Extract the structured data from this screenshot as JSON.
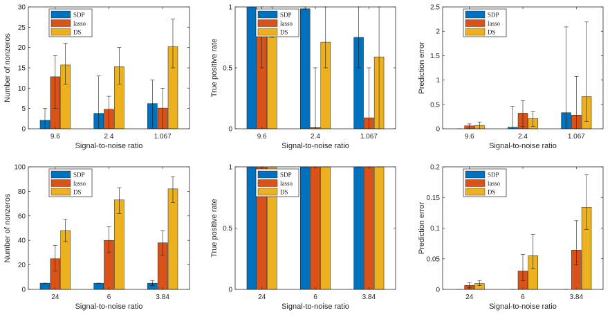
{
  "colors": {
    "SDP": "#0072BD",
    "lasso": "#D95319",
    "DS": "#EDB120"
  },
  "chart_data": [
    {
      "type": "bar",
      "categories": [
        "9.6",
        "2.4",
        "1.067"
      ],
      "xlabel": "Signal-to-noise ratio",
      "ylabel": "Number of nonzeros",
      "ylim": [
        0,
        30
      ],
      "yticks": [
        "0",
        "5",
        "10",
        "15",
        "20",
        "25",
        "30"
      ],
      "legend": "top-left",
      "series": [
        {
          "name": "SDP",
          "values": [
            2.1,
            3.8,
            6.2
          ],
          "err_low": [
            0,
            0,
            0
          ],
          "err_high": [
            5,
            13,
            12
          ]
        },
        {
          "name": "lasso",
          "values": [
            12.8,
            4.8,
            5.1
          ],
          "err_low": [
            5,
            0,
            0
          ],
          "err_high": [
            18,
            8,
            10
          ]
        },
        {
          "name": "DS",
          "values": [
            15.7,
            15.3,
            20.2
          ],
          "err_low": [
            11,
            11,
            15
          ],
          "err_high": [
            21,
            20,
            27
          ]
        }
      ]
    },
    {
      "type": "bar",
      "categories": [
        "9.6",
        "2.4",
        "1.067"
      ],
      "xlabel": "Signal-to-noise ratio",
      "ylabel": "True positive rate",
      "ylim": [
        0,
        1
      ],
      "yticks": [
        "0",
        "0.5",
        "1"
      ],
      "legend": "top-left",
      "series": [
        {
          "name": "SDP",
          "values": [
            1.0,
            0.985,
            0.75
          ],
          "err_low": [
            1.0,
            0.98,
            0.5
          ],
          "err_high": [
            1.0,
            1.0,
            1.0
          ]
        },
        {
          "name": "lasso",
          "values": [
            0.95,
            0.01,
            0.09
          ],
          "err_low": [
            0.5,
            0.0,
            0.0
          ],
          "err_high": [
            1.0,
            0.5,
            0.5
          ]
        },
        {
          "name": "DS",
          "values": [
            0.91,
            0.71,
            0.59
          ],
          "err_low": [
            0.75,
            0.5,
            0.0
          ],
          "err_high": [
            1.0,
            1.0,
            1.0
          ]
        }
      ]
    },
    {
      "type": "bar",
      "categories": [
        "9.6",
        "2.4",
        "1.067"
      ],
      "xlabel": "Signal-to-noise ratio",
      "ylabel": "Prediction error",
      "ylim": [
        0,
        2.5
      ],
      "yticks": [
        "0",
        "0.5",
        "1",
        "1.5",
        "2",
        "2.5"
      ],
      "legend": "top-left",
      "series": [
        {
          "name": "SDP",
          "values": [
            0.0,
            0.03,
            0.33
          ],
          "err_low": [
            0,
            0,
            0
          ],
          "err_high": [
            0,
            0.46,
            2.09
          ]
        },
        {
          "name": "lasso",
          "values": [
            0.06,
            0.32,
            0.28
          ],
          "err_low": [
            0,
            0.05,
            0
          ],
          "err_high": [
            0.1,
            0.58,
            1.07
          ]
        },
        {
          "name": "DS",
          "values": [
            0.07,
            0.21,
            0.66
          ],
          "err_low": [
            0,
            0.05,
            0.15
          ],
          "err_high": [
            0.14,
            0.35,
            2.19
          ]
        }
      ]
    },
    {
      "type": "bar",
      "categories": [
        "24",
        "6",
        "3.84"
      ],
      "xlabel": "Signal-to-noise ratio",
      "ylabel": "Number of nonzeros",
      "ylim": [
        0,
        100
      ],
      "yticks": [
        "0",
        "20",
        "40",
        "60",
        "80",
        "100"
      ],
      "legend": "top-left",
      "series": [
        {
          "name": "SDP",
          "values": [
            5,
            5,
            5
          ],
          "err_low": [
            5,
            5,
            3
          ],
          "err_high": [
            5,
            5,
            7
          ]
        },
        {
          "name": "lasso",
          "values": [
            25,
            40,
            38
          ],
          "err_low": [
            15,
            30,
            28
          ],
          "err_high": [
            36,
            51,
            48
          ]
        },
        {
          "name": "DS",
          "values": [
            48,
            73,
            82
          ],
          "err_low": [
            39,
            62,
            71
          ],
          "err_high": [
            57,
            83,
            92
          ]
        }
      ]
    },
    {
      "type": "bar",
      "categories": [
        "24",
        "6",
        "3.84"
      ],
      "xlabel": "Signal-to-noise ratio",
      "ylabel": "True positive rate",
      "ylim": [
        0,
        1
      ],
      "yticks": [
        "0",
        "0.5",
        "1"
      ],
      "legend": "top-left",
      "series": [
        {
          "name": "SDP",
          "values": [
            1,
            1,
            1
          ],
          "err_low": [
            1,
            1,
            1
          ],
          "err_high": [
            1,
            1,
            1
          ]
        },
        {
          "name": "lasso",
          "values": [
            1,
            1,
            1
          ],
          "err_low": [
            1,
            1,
            1
          ],
          "err_high": [
            1,
            1,
            1
          ]
        },
        {
          "name": "DS",
          "values": [
            1,
            1,
            1
          ],
          "err_low": [
            1,
            1,
            1
          ],
          "err_high": [
            1,
            1,
            1
          ]
        }
      ]
    },
    {
      "type": "bar",
      "categories": [
        "24",
        "6",
        "3.84"
      ],
      "xlabel": "Signal-to-noise ratio",
      "ylabel": "Prediction error",
      "ylim": [
        0,
        0.2
      ],
      "yticks": [
        "0",
        "0.05",
        "0.1",
        "0.15",
        "0.2"
      ],
      "legend": "top-left",
      "series": [
        {
          "name": "SDP",
          "values": [
            0,
            0,
            0
          ],
          "err_low": [
            0,
            0,
            0
          ],
          "err_high": [
            0,
            0,
            0
          ]
        },
        {
          "name": "lasso",
          "values": [
            0.0065,
            0.03,
            0.064
          ],
          "err_low": [
            0.0025,
            0.014,
            0.04
          ],
          "err_high": [
            0.011,
            0.057,
            0.112
          ]
        },
        {
          "name": "DS",
          "values": [
            0.0095,
            0.055,
            0.134
          ],
          "err_low": [
            0.006,
            0.034,
            0.098
          ],
          "err_high": [
            0.014,
            0.09,
            0.187
          ]
        }
      ]
    }
  ]
}
